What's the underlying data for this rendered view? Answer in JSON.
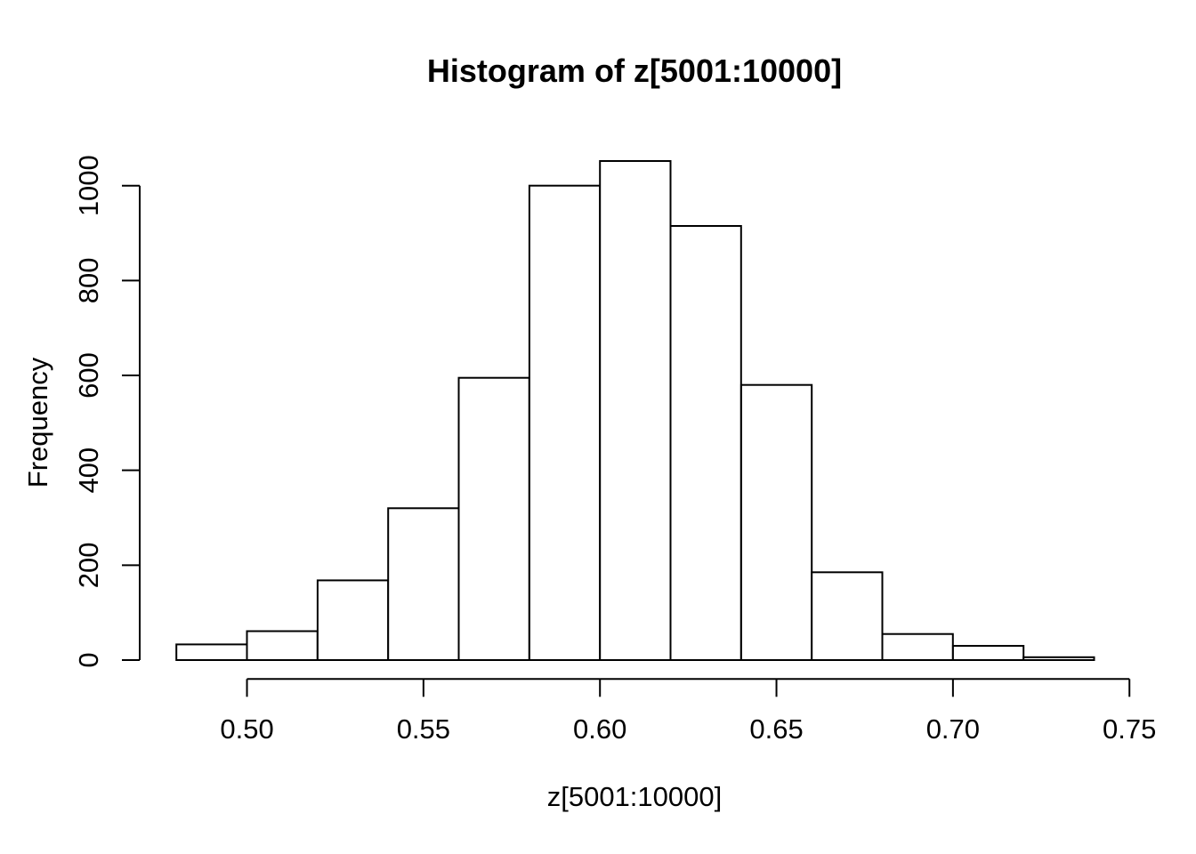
{
  "page": {
    "background_color": "#ffffff",
    "foreground_color": "#000000"
  },
  "chart_data": {
    "type": "bar",
    "subtype": "histogram",
    "title": "Histogram of z[5001:10000]",
    "xlabel": "z[5001:10000]",
    "ylabel": "Frequency",
    "bin_start": 0.48,
    "bin_width": 0.02,
    "bin_edges": [
      0.48,
      0.5,
      0.52,
      0.54,
      0.56,
      0.58,
      0.6,
      0.62,
      0.64,
      0.66,
      0.68,
      0.7,
      0.72,
      0.74
    ],
    "counts": [
      33,
      61,
      168,
      320,
      595,
      1000,
      1052,
      915,
      580,
      185,
      55,
      30,
      6
    ],
    "x_tick_values": [
      0.5,
      0.55,
      0.6,
      0.65,
      0.7,
      0.75
    ],
    "x_tick_labels": [
      "0.50",
      "0.55",
      "0.60",
      "0.65",
      "0.70",
      "0.75"
    ],
    "y_tick_values": [
      0,
      200,
      400,
      600,
      800,
      1000
    ],
    "y_tick_labels": [
      "0",
      "200",
      "400",
      "600",
      "800",
      "1000"
    ],
    "xlim": [
      0.4696,
      0.7504
    ],
    "ylim": [
      0,
      1050
    ],
    "grid": false,
    "legend_position": "none",
    "bar_fill": "#ffffff",
    "bar_stroke": "#000000",
    "axis_color": "#000000",
    "text_color": "#000000"
  }
}
